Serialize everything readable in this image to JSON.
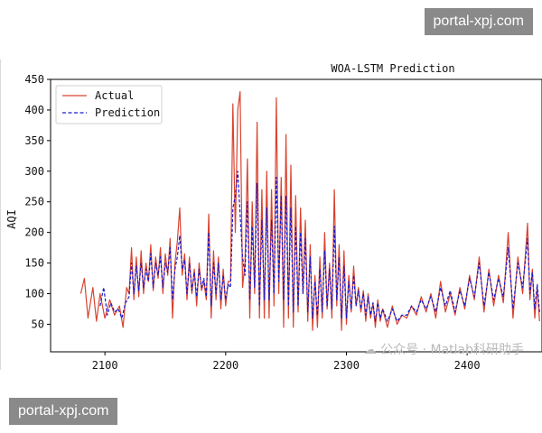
{
  "watermarks": {
    "top": "portal-xpj.com",
    "bottom": "portal-xpj.com",
    "wechat": "公众号 · Matlab科研助手"
  },
  "chart_data": {
    "type": "line",
    "title": "WOA-LSTM Prediction",
    "xlabel": "",
    "ylabel": "AQI",
    "xlim": [
      2055,
      2462
    ],
    "ylim": [
      5,
      450
    ],
    "xticks": [
      2100,
      2200,
      2300,
      2400
    ],
    "yticks": [
      50,
      100,
      150,
      200,
      250,
      300,
      350,
      400,
      450
    ],
    "grid": false,
    "legend": "top-left",
    "series": [
      {
        "name": "Actual",
        "color": "#d9432f",
        "style": "solid",
        "x": [
          2080,
          2083,
          2086,
          2090,
          2093,
          2096,
          2100,
          2104,
          2108,
          2112,
          2115,
          2118,
          2120,
          2122,
          2124,
          2126,
          2128,
          2130,
          2132,
          2134,
          2136,
          2138,
          2140,
          2142,
          2144,
          2146,
          2148,
          2150,
          2152,
          2154,
          2156,
          2158,
          2160,
          2162,
          2164,
          2166,
          2168,
          2170,
          2172,
          2174,
          2176,
          2178,
          2180,
          2182,
          2184,
          2186,
          2188,
          2190,
          2192,
          2194,
          2196,
          2198,
          2200,
          2202,
          2204,
          2206,
          2208,
          2210,
          2212,
          2214,
          2216,
          2218,
          2220,
          2222,
          2224,
          2226,
          2228,
          2230,
          2232,
          2234,
          2236,
          2238,
          2240,
          2242,
          2244,
          2246,
          2248,
          2250,
          2252,
          2254,
          2256,
          2258,
          2260,
          2262,
          2264,
          2266,
          2268,
          2270,
          2272,
          2274,
          2276,
          2278,
          2280,
          2282,
          2284,
          2286,
          2288,
          2290,
          2292,
          2294,
          2296,
          2298,
          2300,
          2302,
          2304,
          2306,
          2308,
          2310,
          2312,
          2314,
          2316,
          2318,
          2320,
          2322,
          2324,
          2326,
          2328,
          2330,
          2334,
          2338,
          2342,
          2346,
          2350,
          2354,
          2358,
          2362,
          2366,
          2370,
          2374,
          2378,
          2382,
          2386,
          2390,
          2394,
          2398,
          2402,
          2406,
          2410,
          2414,
          2418,
          2422,
          2426,
          2430,
          2434,
          2438,
          2442,
          2446,
          2450,
          2452,
          2454,
          2456,
          2458,
          2460
        ],
        "values": [
          100,
          125,
          60,
          110,
          55,
          100,
          60,
          90,
          65,
          80,
          45,
          110,
          100,
          175,
          90,
          160,
          95,
          170,
          100,
          150,
          120,
          180,
          105,
          160,
          125,
          175,
          100,
          165,
          130,
          190,
          60,
          150,
          185,
          240,
          130,
          165,
          90,
          160,
          100,
          140,
          80,
          150,
          105,
          120,
          90,
          230,
          60,
          170,
          90,
          160,
          75,
          140,
          80,
          120,
          120,
          410,
          200,
          400,
          430,
          110,
          150,
          320,
          60,
          250,
          100,
          380,
          60,
          270,
          60,
          300,
          60,
          270,
          80,
          420,
          100,
          290,
          45,
          360,
          60,
          310,
          45,
          260,
          70,
          240,
          100,
          220,
          55,
          180,
          40,
          130,
          45,
          160,
          60,
          200,
          75,
          150,
          60,
          270,
          80,
          180,
          40,
          170,
          50,
          130,
          70,
          145,
          80,
          110,
          70,
          105,
          55,
          100,
          60,
          85,
          45,
          90,
          55,
          75,
          45,
          80,
          50,
          65,
          60,
          80,
          65,
          95,
          70,
          100,
          60,
          120,
          70,
          100,
          65,
          110,
          75,
          130,
          90,
          160,
          70,
          140,
          80,
          130,
          85,
          200,
          60,
          160,
          100,
          215,
          90,
          140,
          60,
          110,
          55
        ]
      },
      {
        "name": "Prediction",
        "color": "#1a1acc",
        "style": "dashed",
        "x": [
          2096,
          2099,
          2102,
          2105,
          2108,
          2111,
          2114,
          2117,
          2120,
          2122,
          2124,
          2126,
          2128,
          2130,
          2132,
          2134,
          2136,
          2138,
          2140,
          2142,
          2144,
          2146,
          2148,
          2150,
          2152,
          2154,
          2156,
          2158,
          2160,
          2162,
          2164,
          2166,
          2168,
          2170,
          2172,
          2174,
          2176,
          2178,
          2180,
          2182,
          2184,
          2186,
          2188,
          2190,
          2192,
          2194,
          2196,
          2198,
          2200,
          2202,
          2204,
          2206,
          2208,
          2210,
          2212,
          2214,
          2216,
          2218,
          2220,
          2222,
          2224,
          2226,
          2228,
          2230,
          2232,
          2234,
          2236,
          2238,
          2240,
          2242,
          2244,
          2246,
          2248,
          2250,
          2252,
          2254,
          2256,
          2258,
          2260,
          2262,
          2264,
          2266,
          2268,
          2270,
          2272,
          2274,
          2276,
          2278,
          2280,
          2282,
          2284,
          2286,
          2288,
          2290,
          2292,
          2294,
          2296,
          2298,
          2300,
          2302,
          2304,
          2306,
          2308,
          2310,
          2312,
          2314,
          2316,
          2318,
          2320,
          2322,
          2324,
          2326,
          2328,
          2330,
          2334,
          2338,
          2342,
          2346,
          2350,
          2354,
          2358,
          2362,
          2366,
          2370,
          2374,
          2378,
          2382,
          2386,
          2390,
          2394,
          2398,
          2402,
          2406,
          2410,
          2414,
          2418,
          2422,
          2426,
          2430,
          2434,
          2438,
          2442,
          2446,
          2450,
          2452,
          2454,
          2456,
          2458,
          2460
        ],
        "values": [
          80,
          110,
          65,
          85,
          70,
          75,
          60,
          85,
          95,
          150,
          100,
          145,
          105,
          150,
          110,
          140,
          120,
          165,
          110,
          150,
          130,
          160,
          110,
          150,
          135,
          175,
          90,
          140,
          160,
          195,
          140,
          155,
          100,
          150,
          105,
          135,
          95,
          140,
          110,
          125,
          95,
          200,
          80,
          150,
          100,
          150,
          90,
          130,
          90,
          115,
          110,
          240,
          260,
          300,
          230,
          160,
          130,
          250,
          90,
          210,
          110,
          280,
          80,
          220,
          90,
          240,
          90,
          220,
          100,
          290,
          120,
          260,
          90,
          260,
          80,
          240,
          70,
          210,
          80,
          200,
          100,
          190,
          70,
          160,
          60,
          120,
          65,
          140,
          70,
          170,
          80,
          140,
          75,
          210,
          90,
          160,
          60,
          145,
          60,
          120,
          75,
          130,
          80,
          105,
          75,
          100,
          65,
          95,
          65,
          85,
          55,
          85,
          60,
          75,
          55,
          75,
          55,
          65,
          65,
          80,
          70,
          90,
          75,
          95,
          70,
          110,
          80,
          105,
          70,
          105,
          80,
          125,
          95,
          150,
          80,
          135,
          90,
          125,
          95,
          175,
          75,
          150,
          110,
          190,
          100,
          135,
          75,
          115,
          70
        ]
      }
    ]
  }
}
